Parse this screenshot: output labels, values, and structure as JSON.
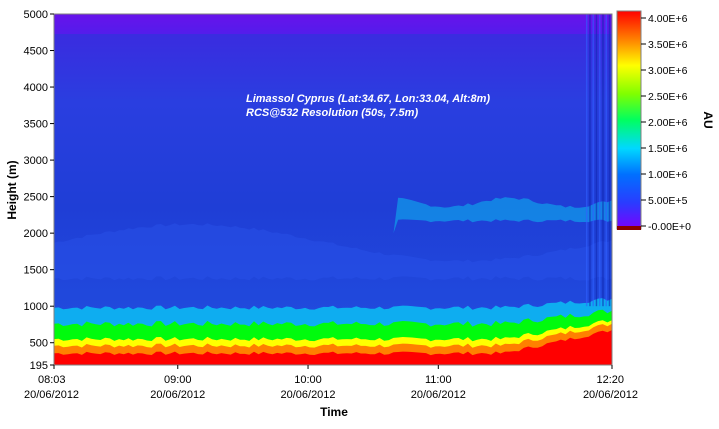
{
  "chart_data": {
    "type": "heatmap",
    "xlabel": "Time",
    "ylabel": "Height (m)",
    "colorbar_label": "AU",
    "annotation_line1": "Limassol Cyprus (Lat:34.67, Lon:33.04, Alt:8m)",
    "annotation_line2": "RCS@532 Resolution (50s, 7.5m)",
    "x_ticks": [
      {
        "time": "08:03",
        "date": "20/06/2012",
        "minutes": 483
      },
      {
        "time": "09:00",
        "date": "20/06/2012",
        "minutes": 540
      },
      {
        "time": "10:00",
        "date": "20/06/2012",
        "minutes": 600
      },
      {
        "time": "11:00",
        "date": "20/06/2012",
        "minutes": 660
      },
      {
        "time": "12:20",
        "date": "20/06/2012",
        "minutes": 740
      }
    ],
    "xlim_minutes": [
      483,
      740
    ],
    "y_ticks": [
      195,
      500,
      1000,
      1500,
      2000,
      2500,
      3000,
      3500,
      4000,
      4500,
      5000
    ],
    "ylim": [
      195,
      5000
    ],
    "colorbar_ticks": [
      "4.00E+6",
      "3.50E+6",
      "3.00E+6",
      "2.50E+6",
      "2.00E+6",
      "1.50E+6",
      "1.00E+6",
      "5.00E+5",
      "-0.00E+0"
    ],
    "colorbar_values": [
      4000000,
      3500000,
      3000000,
      2500000,
      2000000,
      1500000,
      1000000,
      500000,
      0
    ],
    "colors": {
      "high": "#ff0000",
      "orange": "#ff8000",
      "yellow": "#ffff00",
      "green": "#00ff00",
      "cyan": "#00ffff",
      "mid_blue": "#2850e8",
      "background": "#1e3cd8",
      "low": "#8000ff"
    }
  }
}
